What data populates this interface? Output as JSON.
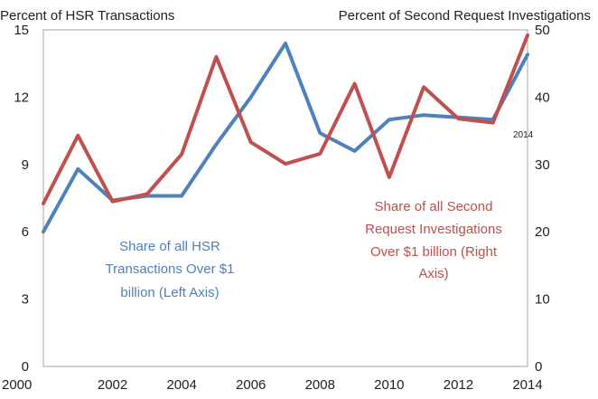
{
  "chart_data": {
    "type": "line",
    "left_axis_title": "Percent of HSR Transactions",
    "right_axis_title": "Percent of Second Request Investigations",
    "x": [
      2000,
      2001,
      2002,
      2003,
      2004,
      2005,
      2006,
      2007,
      2008,
      2009,
      2010,
      2011,
      2012,
      2013,
      2014
    ],
    "x_ticks": [
      "2000",
      "2002",
      "2004",
      "2006",
      "2008",
      "2010",
      "2012",
      "2014"
    ],
    "left_ylim": [
      0,
      15
    ],
    "left_ticks": [
      "0",
      "3",
      "6",
      "9",
      "12",
      "15"
    ],
    "right_ylim": [
      0,
      50
    ],
    "right_ticks": [
      "0",
      "10",
      "20",
      "30",
      "40",
      "50"
    ],
    "grid": false,
    "point_label": "2014",
    "series": [
      {
        "axis": "left",
        "color": "#4f81bd",
        "values": [
          6.0,
          8.8,
          7.4,
          7.6,
          7.6,
          9.9,
          12.0,
          14.4,
          10.4,
          9.6,
          11.0,
          11.2,
          11.1,
          11.0,
          13.9
        ],
        "annotation": [
          "Share of all HSR",
          "Transactions Over $1",
          "billion (Left Axis)"
        ]
      },
      {
        "axis": "right",
        "color": "#c0504d",
        "values": [
          24.2,
          34.3,
          24.5,
          25.6,
          31.5,
          46.0,
          33.3,
          30.1,
          31.6,
          42.0,
          28.1,
          41.5,
          36.8,
          36.2,
          49.2
        ],
        "annotation": [
          "Share of all Second",
          "Request Investigations",
          "Over $1 billion (Right",
          "Axis)"
        ]
      }
    ]
  }
}
